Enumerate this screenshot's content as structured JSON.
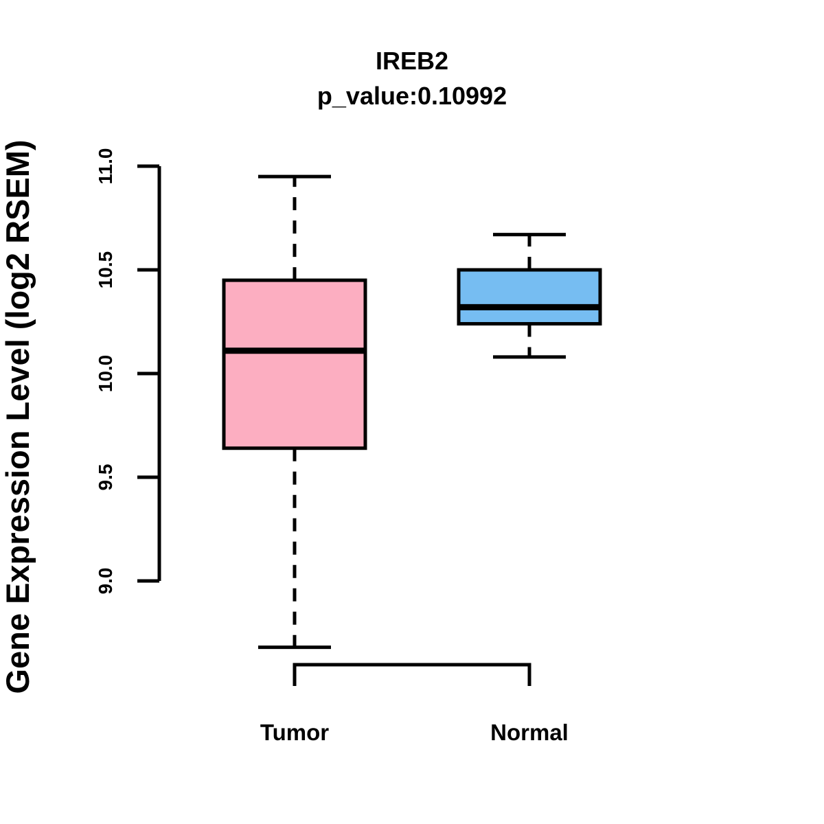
{
  "figure": {
    "title": "IREB2",
    "subtitle": "p_value:0.10992",
    "ylabel": "Gene Expression Level (log2 RSEM)"
  },
  "chart_data": {
    "type": "boxplot",
    "title": "IREB2",
    "subtitle": "p_value:0.10992",
    "gene": "IREB2",
    "p_value": 0.10992,
    "ylabel": "Gene Expression Level (log2 RSEM)",
    "xlabel": "",
    "categories": [
      "Tumor",
      "Normal"
    ],
    "yticks": [
      "9.0",
      "9.5",
      "10.0",
      "10.5",
      "11.0"
    ],
    "y_axis_range": [
      9.0,
      11.0
    ],
    "grid": false,
    "legend": null,
    "series": [
      {
        "name": "Tumor",
        "lower_whisker": 8.68,
        "q1": 9.64,
        "median": 10.11,
        "q3": 10.45,
        "upper_whisker": 10.95,
        "fill_color": "#FCAEC1"
      },
      {
        "name": "Normal",
        "lower_whisker": 10.08,
        "q1": 10.24,
        "median": 10.32,
        "q3": 10.5,
        "upper_whisker": 10.67,
        "fill_color": "#76BDF2"
      }
    ],
    "stroke_color": "#000000",
    "background_color": "#FFFFFF"
  }
}
